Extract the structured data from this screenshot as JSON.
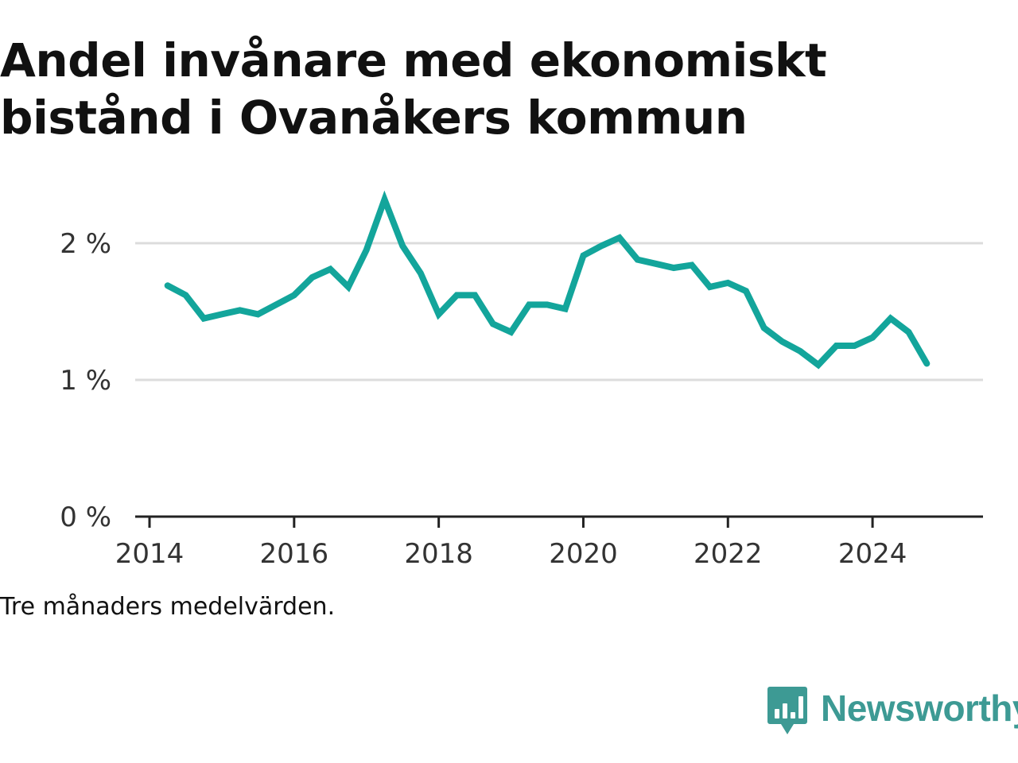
{
  "title_lines": [
    "Andel invånare med ekonomiskt",
    "bistånd i Ovanåkers kommun"
  ],
  "note": "Tre månaders medelvärden.",
  "brand": {
    "name": "Newsworthy",
    "icon": "newsworthy-logo-icon",
    "color": "#3d9a94"
  },
  "colors": {
    "line": "#13a59b",
    "grid": "#dcdcdc",
    "axis": "#222222"
  },
  "chart_data": {
    "type": "line",
    "title": "Andel invånare med ekonomiskt bistånd i Ovanåkers kommun",
    "xlabel": "",
    "ylabel": "",
    "xlim": [
      "2014-01",
      "2025-06"
    ],
    "ylim": [
      0,
      2.5
    ],
    "x_ticks": [
      "2014",
      "2016",
      "2018",
      "2020",
      "2022",
      "2024"
    ],
    "y_ticks": [
      {
        "value": 0,
        "label": "0 %"
      },
      {
        "value": 1,
        "label": "1 %"
      },
      {
        "value": 2,
        "label": "2 %"
      }
    ],
    "grid": "horizontal",
    "series": [
      {
        "x": [
          "2014-04",
          "2014-07",
          "2014-10",
          "2015-01",
          "2015-04",
          "2015-07",
          "2015-10",
          "2016-01",
          "2016-04",
          "2016-07",
          "2016-10",
          "2017-01",
          "2017-04",
          "2017-07",
          "2017-10",
          "2018-01",
          "2018-04",
          "2018-07",
          "2018-10",
          "2019-01",
          "2019-04",
          "2019-07",
          "2019-10",
          "2020-01",
          "2020-04",
          "2020-07",
          "2020-10",
          "2021-01",
          "2021-04",
          "2021-07",
          "2021-10",
          "2022-01",
          "2022-04",
          "2022-07",
          "2022-10",
          "2023-01",
          "2023-04",
          "2023-07",
          "2023-10",
          "2024-01",
          "2024-04",
          "2024-07",
          "2024-10"
        ],
        "y": [
          1.69,
          1.62,
          1.45,
          1.48,
          1.51,
          1.48,
          1.55,
          1.62,
          1.75,
          1.81,
          1.68,
          1.95,
          2.32,
          1.98,
          1.78,
          1.48,
          1.62,
          1.62,
          1.41,
          1.35,
          1.55,
          1.55,
          1.52,
          1.91,
          1.98,
          2.04,
          1.88,
          1.85,
          1.82,
          1.84,
          1.68,
          1.71,
          1.65,
          1.38,
          1.28,
          1.21,
          1.11,
          1.25,
          1.25,
          1.31,
          1.45,
          1.35,
          1.12
        ]
      }
    ]
  }
}
